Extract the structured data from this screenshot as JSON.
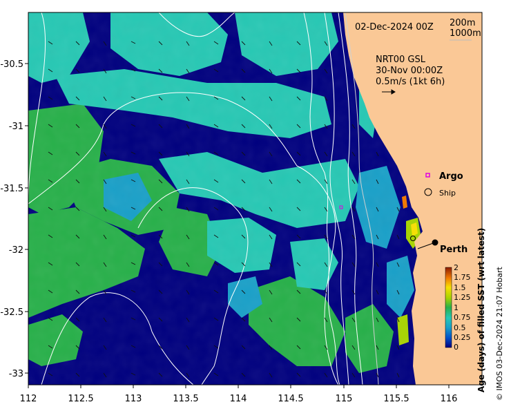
{
  "map": {
    "date_label": "02-Dec-2024 00Z",
    "legend_depths": [
      "200m",
      "1000m"
    ],
    "current_label_1": "NRT00 GSL",
    "current_label_2": "30-Nov 00:00Z",
    "current_label_3": "0.5m/s (1kt 6h)",
    "argo_label": "Argo",
    "ship_label": "Ship",
    "city_label": "Perth",
    "x_ticks": [
      "112",
      "112.5",
      "113",
      "113.5",
      "114",
      "114.5",
      "115",
      "115.5",
      "116"
    ],
    "y_ticks": [
      "-30.5",
      "-31",
      "-31.5",
      "-32",
      "-32.5",
      "-33"
    ],
    "colorbar_title": "Age (days) of filled SST (wrt latest)",
    "colorbar_ticks": [
      "2",
      "1.75",
      "1.5",
      "1.25",
      "1",
      "0.75",
      "0.5",
      "0.25",
      "0"
    ],
    "credit": "© IMOS 03-Dec-2024 21:07 Hobart",
    "colors": {
      "land": "#fac896",
      "age_0": "#00007f",
      "age_0_5": "#1aa0c8",
      "age_0_75": "#27c8b4",
      "age_1": "#28b04a",
      "age_1_25": "#a8d400",
      "age_1_5": "#f8e000",
      "age_2": "#8b1a00"
    }
  }
}
